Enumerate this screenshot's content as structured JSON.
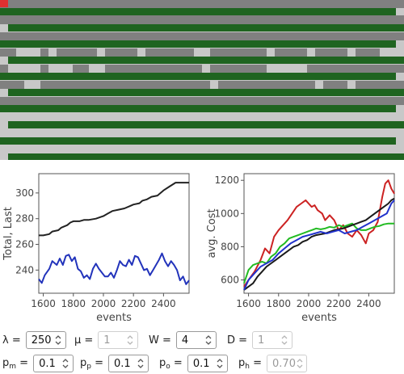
{
  "simulation": {
    "colors": {
      "street": "#808080",
      "lane": "#1f6420",
      "free": "#c8c8c8",
      "marker": "#e03030"
    }
  },
  "chart_data": [
    {
      "type": "line",
      "xlabel": "events",
      "ylabel": "Total, Last",
      "xlim": [
        1570,
        2570
      ],
      "ylim": [
        222,
        315
      ],
      "xticks": [
        1600,
        1800,
        2000,
        2200,
        2400
      ],
      "yticks": [
        240,
        260,
        280,
        300
      ],
      "series": [
        {
          "color": "#222222",
          "x": [
            1570,
            1600,
            1640,
            1660,
            1700,
            1720,
            1760,
            1780,
            1800,
            1840,
            1870,
            1900,
            1950,
            2000,
            2030,
            2060,
            2100,
            2140,
            2180,
            2200,
            2240,
            2260,
            2290,
            2320,
            2360,
            2380,
            2400,
            2440,
            2480,
            2520,
            2570
          ],
          "values": [
            267,
            267,
            268,
            270,
            271,
            273,
            275,
            277,
            278,
            278,
            279,
            279,
            280,
            282,
            284,
            286,
            287,
            288,
            290,
            291,
            292,
            294,
            295,
            297,
            298,
            300,
            302,
            305,
            308,
            308,
            308
          ]
        },
        {
          "color": "#2233bb",
          "x": [
            1570,
            1590,
            1610,
            1640,
            1660,
            1690,
            1710,
            1730,
            1750,
            1770,
            1790,
            1810,
            1830,
            1850,
            1870,
            1890,
            1910,
            1930,
            1950,
            1970,
            1990,
            2010,
            2030,
            2050,
            2070,
            2090,
            2110,
            2130,
            2150,
            2170,
            2190,
            2210,
            2230,
            2250,
            2270,
            2290,
            2310,
            2330,
            2350,
            2370,
            2390,
            2410,
            2430,
            2450,
            2470,
            2490,
            2510,
            2530,
            2550,
            2570
          ],
          "values": [
            233,
            230,
            236,
            241,
            247,
            244,
            249,
            244,
            251,
            252,
            247,
            250,
            241,
            239,
            234,
            236,
            233,
            241,
            245,
            241,
            238,
            235,
            235,
            238,
            234,
            240,
            247,
            244,
            243,
            248,
            244,
            251,
            250,
            245,
            240,
            241,
            236,
            240,
            244,
            248,
            253,
            247,
            243,
            247,
            244,
            240,
            232,
            235,
            229,
            232
          ]
        }
      ]
    },
    {
      "type": "line",
      "xlabel": "events",
      "ylabel": "avg. Cost",
      "xlim": [
        1570,
        2570
      ],
      "ylim": [
        520,
        1240
      ],
      "xticks": [
        1600,
        1800,
        2000,
        2200,
        2400
      ],
      "yticks": [
        600,
        800,
        1000,
        1200
      ],
      "series": [
        {
          "color": "#cc2222",
          "x": [
            1570,
            1600,
            1640,
            1680,
            1710,
            1740,
            1770,
            1800,
            1830,
            1860,
            1890,
            1920,
            1950,
            1980,
            2000,
            2020,
            2040,
            2060,
            2090,
            2110,
            2140,
            2170,
            2200,
            2230,
            2260,
            2290,
            2320,
            2350,
            2380,
            2400,
            2430,
            2460,
            2490,
            2510,
            2530,
            2550,
            2570
          ],
          "values": [
            560,
            600,
            650,
            720,
            790,
            760,
            860,
            900,
            930,
            960,
            1000,
            1040,
            1060,
            1080,
            1060,
            1040,
            1050,
            1020,
            1000,
            960,
            990,
            960,
            900,
            930,
            880,
            860,
            900,
            870,
            820,
            880,
            900,
            950,
            1100,
            1180,
            1200,
            1150,
            1120
          ]
        },
        {
          "color": "#22bb22",
          "x": [
            1570,
            1600,
            1630,
            1660,
            1690,
            1720,
            1750,
            1780,
            1810,
            1840,
            1870,
            1900,
            1930,
            1960,
            1990,
            2020,
            2050,
            2080,
            2110,
            2140,
            2170,
            2200,
            2230,
            2260,
            2290,
            2320,
            2350,
            2380,
            2410,
            2440,
            2470,
            2500,
            2530,
            2570
          ],
          "values": [
            580,
            660,
            690,
            700,
            710,
            700,
            740,
            760,
            800,
            820,
            850,
            860,
            870,
            880,
            890,
            900,
            910,
            905,
            910,
            920,
            915,
            930,
            920,
            930,
            940,
            910,
            900,
            900,
            910,
            920,
            925,
            935,
            940,
            940
          ]
        },
        {
          "color": "#1a1a1a",
          "x": [
            1570,
            1600,
            1630,
            1660,
            1690,
            1720,
            1750,
            1780,
            1810,
            1840,
            1870,
            1900,
            1930,
            1960,
            1990,
            2020,
            2050,
            2080,
            2110,
            2140,
            2170,
            2200,
            2230,
            2260,
            2290,
            2320,
            2350,
            2380,
            2410,
            2440,
            2470,
            2500,
            2530,
            2550,
            2570
          ],
          "values": [
            540,
            560,
            580,
            620,
            650,
            680,
            700,
            720,
            740,
            760,
            780,
            800,
            810,
            830,
            840,
            860,
            870,
            875,
            880,
            890,
            900,
            905,
            910,
            920,
            930,
            940,
            950,
            960,
            980,
            1000,
            1020,
            1040,
            1060,
            1080,
            1090
          ]
        },
        {
          "color": "#2233cc",
          "x": [
            1570,
            1600,
            1640,
            1680,
            1720,
            1760,
            1800,
            1840,
            1880,
            1920,
            1960,
            2000,
            2040,
            2080,
            2120,
            2160,
            2200,
            2240,
            2280,
            2320,
            2360,
            2400,
            2440,
            2480,
            2520,
            2550,
            2570
          ],
          "values": [
            540,
            600,
            640,
            680,
            700,
            720,
            760,
            790,
            820,
            840,
            860,
            870,
            880,
            890,
            880,
            890,
            900,
            880,
            890,
            900,
            920,
            940,
            960,
            980,
            1000,
            1060,
            1080
          ]
        }
      ]
    }
  ],
  "controls": {
    "row1": [
      {
        "label": "λ =",
        "value": "250",
        "disabled": false
      },
      {
        "label": "μ =",
        "value": "1",
        "disabled": true
      },
      {
        "label": "W =",
        "value": "4",
        "disabled": false
      },
      {
        "label": "D =",
        "value": "1",
        "disabled": true
      }
    ],
    "row2": [
      {
        "label": "p",
        "sub": "m",
        "value": "0.1",
        "disabled": false
      },
      {
        "label": "p",
        "sub": "p",
        "value": "0.1",
        "disabled": false
      },
      {
        "label": "p",
        "sub": "o",
        "value": "0.1",
        "disabled": false
      },
      {
        "label": "p",
        "sub": "h",
        "value": "0.70",
        "disabled": true
      }
    ]
  }
}
